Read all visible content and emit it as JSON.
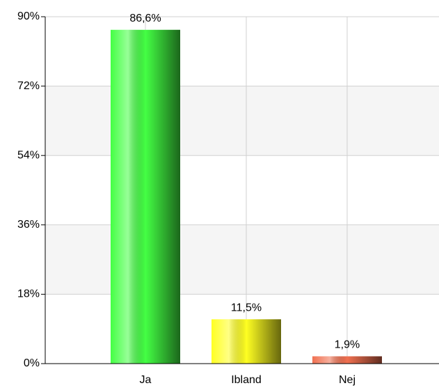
{
  "chart_data": {
    "type": "bar",
    "categories": [
      "Ja",
      "Ibland",
      "Nej"
    ],
    "values": [
      86.6,
      11.5,
      1.9
    ],
    "value_labels": [
      "86,6%",
      "11,5%",
      "1,9%"
    ],
    "colors": [
      "#44ff44",
      "#ffff22",
      "#f07050"
    ],
    "ylim": [
      0,
      90
    ],
    "yticks": [
      {
        "value": 0,
        "label": "0%"
      },
      {
        "value": 18,
        "label": "18%"
      },
      {
        "value": 36,
        "label": "36%"
      },
      {
        "value": 54,
        "label": "54%"
      },
      {
        "value": 72,
        "label": "72%"
      },
      {
        "value": 90,
        "label": "90%"
      }
    ],
    "grid": true
  }
}
